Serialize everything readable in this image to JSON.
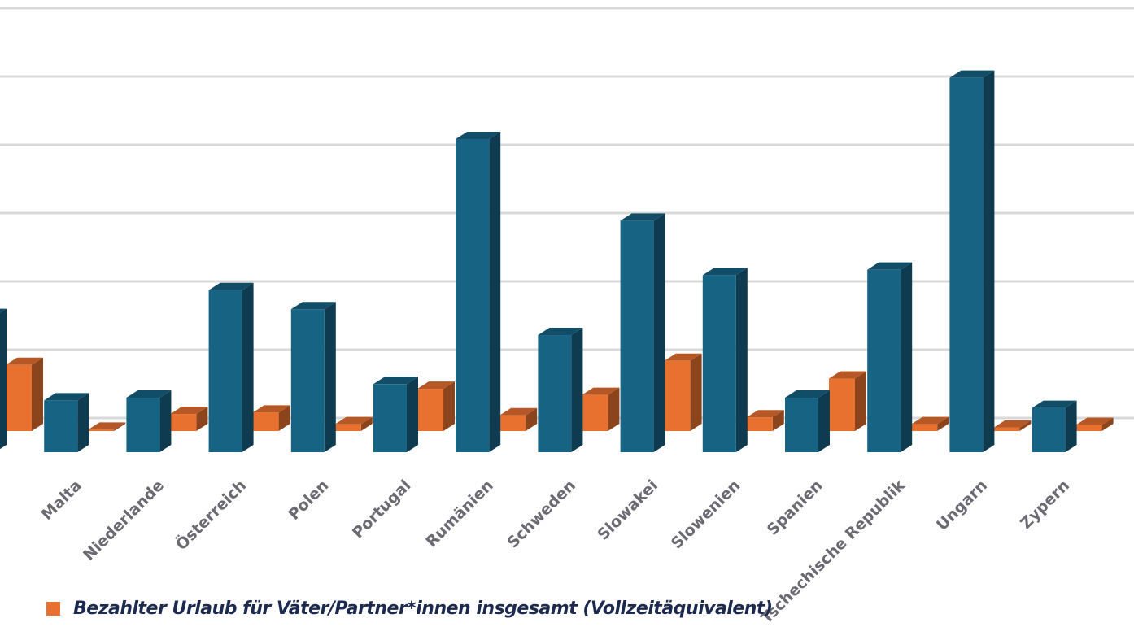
{
  "chart_data": {
    "type": "bar",
    "style": "3d-clustered",
    "grid": true,
    "legend_position": "bottom",
    "categories": [
      "",
      "Malta",
      "Niederlande",
      "Österreich",
      "Polen",
      "Portugal",
      "Rumänien",
      "Schweden",
      "Slowakei",
      "Slowenien",
      "Spanien",
      "Tschechische Republik",
      "Ungarn",
      "Zypern"
    ],
    "ylim": [
      0,
      6.5
    ],
    "series": [
      {
        "color": "#176384",
        "values": [
          2.0,
          0.76,
          0.8,
          2.38,
          2.1,
          1.0,
          4.6,
          1.72,
          3.4,
          2.6,
          0.8,
          2.68,
          5.5,
          0.65
        ]
      },
      {
        "name": "Bezahlter Urlaub für Väter/Partner*innen insgesamt (Vollzeitäquivalent)",
        "color": "#e9712f",
        "values": [
          0.97,
          0.02,
          0.25,
          0.27,
          0.1,
          0.62,
          0.23,
          0.53,
          1.03,
          0.2,
          0.77,
          0.1,
          0.05,
          0.09
        ]
      }
    ]
  },
  "colors": {
    "grid": "#d9d9d9",
    "label": "#6a6a72",
    "legend_text": "#1d2a4f"
  }
}
